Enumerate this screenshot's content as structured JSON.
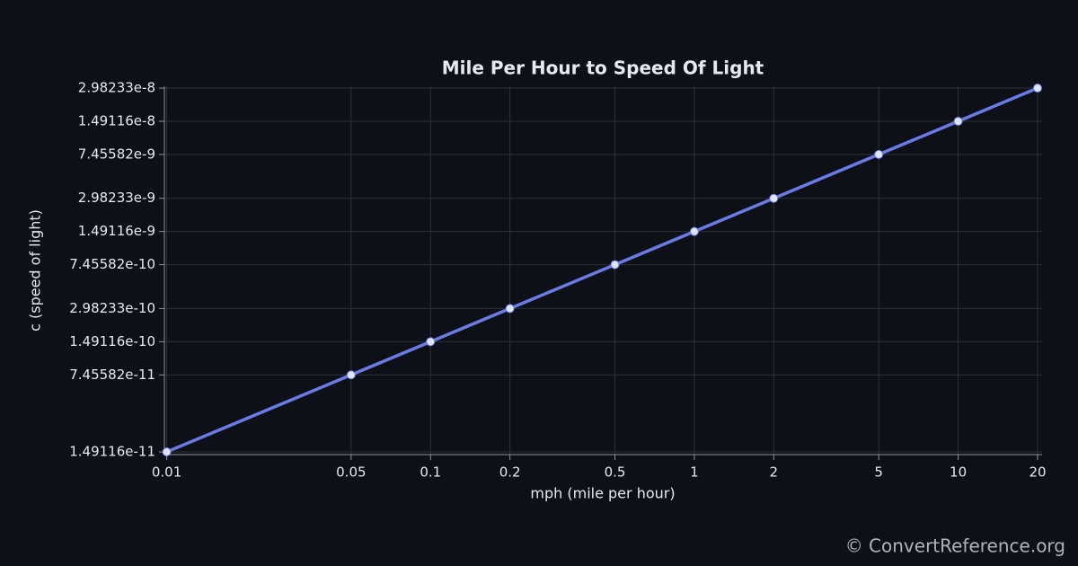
{
  "chart_data": {
    "type": "line",
    "title": "Mile Per Hour to Speed Of Light",
    "xlabel": "mph (mile per hour)",
    "ylabel": "c (speed of light)",
    "x": [
      0.01,
      0.05,
      0.1,
      0.2,
      0.5,
      1,
      2,
      5,
      10,
      20
    ],
    "series": [
      {
        "name": "c (speed of light)",
        "color": "#6b7be6",
        "values": [
          1.49116e-11,
          7.45582e-11,
          1.49116e-10,
          2.98233e-10,
          7.45582e-10,
          1.49116e-09,
          2.98233e-09,
          7.45582e-09,
          1.49116e-08,
          2.98233e-08
        ]
      }
    ],
    "xlog": true,
    "ylog": true,
    "xlim": [
      0.0098,
      20.8
    ],
    "ylim": [
      1.41e-11,
      3.1e-08
    ],
    "xticks": [
      0.01,
      0.05,
      0.1,
      0.2,
      0.5,
      1,
      2,
      5,
      10,
      20
    ],
    "yticks": [
      1.49116e-11,
      7.45582e-11,
      1.49116e-10,
      2.98233e-10,
      7.45582e-10,
      1.49116e-09,
      2.98233e-09,
      7.45582e-09,
      1.49116e-08,
      2.98233e-08
    ],
    "grid": true,
    "watermark": "© ConvertReference.org"
  }
}
